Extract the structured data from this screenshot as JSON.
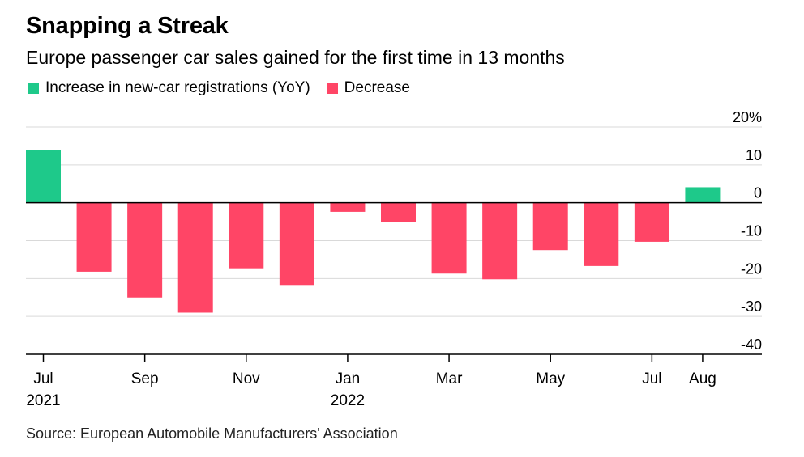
{
  "header": {
    "title": "Snapping a Streak",
    "subtitle": "Europe passenger car sales gained for the first time in 13 months"
  },
  "legend": {
    "increase_label": "Increase in new-car registrations (YoY)",
    "decrease_label": "Decrease"
  },
  "source": "Source: European Automobile Manufacturers' Association",
  "colors": {
    "increase": "#1ec98a",
    "decrease": "#ff4566",
    "grid": "#d9d9d9",
    "axis": "#000000"
  },
  "chart_data": {
    "type": "bar",
    "categories": [
      "Jul 2021",
      "Aug 2021",
      "Sep 2021",
      "Oct 2021",
      "Nov 2021",
      "Dec 2021",
      "Jan 2022",
      "Feb 2022",
      "Mar 2022",
      "Apr 2022",
      "May 2022",
      "Jun 2022",
      "Jul 2022",
      "Aug 2022"
    ],
    "values": [
      13.9,
      -18.2,
      -25.0,
      -29.0,
      -17.3,
      -21.7,
      -2.4,
      -5.0,
      -18.7,
      -20.2,
      -12.5,
      -16.7,
      -10.3,
      4.1
    ],
    "title": "Snapping a Streak",
    "subtitle": "Europe passenger car sales gained for the first time in 13 months",
    "xlabel": "",
    "ylabel": "",
    "ylim": [
      -40,
      20
    ],
    "yticks": [
      20,
      10,
      0,
      -10,
      -20,
      -30,
      -40
    ],
    "ytick_labels": [
      "20%",
      "10",
      "0",
      "-10",
      "-20",
      "-30",
      "-40"
    ],
    "xtick_labels": [
      {
        "index": 0,
        "label": "Jul",
        "sublabel": "2021"
      },
      {
        "index": 2,
        "label": "Sep",
        "sublabel": ""
      },
      {
        "index": 4,
        "label": "Nov",
        "sublabel": ""
      },
      {
        "index": 6,
        "label": "Jan",
        "sublabel": "2022"
      },
      {
        "index": 8,
        "label": "Mar",
        "sublabel": ""
      },
      {
        "index": 10,
        "label": "May",
        "sublabel": ""
      },
      {
        "index": 12,
        "label": "Jul",
        "sublabel": ""
      },
      {
        "index": 13,
        "label": "Aug",
        "sublabel": ""
      }
    ],
    "grid": true,
    "legend_position": "top-left",
    "series": [
      {
        "name": "Increase in new-car registrations (YoY)",
        "color": "#1ec98a"
      },
      {
        "name": "Decrease",
        "color": "#ff4566"
      }
    ]
  }
}
